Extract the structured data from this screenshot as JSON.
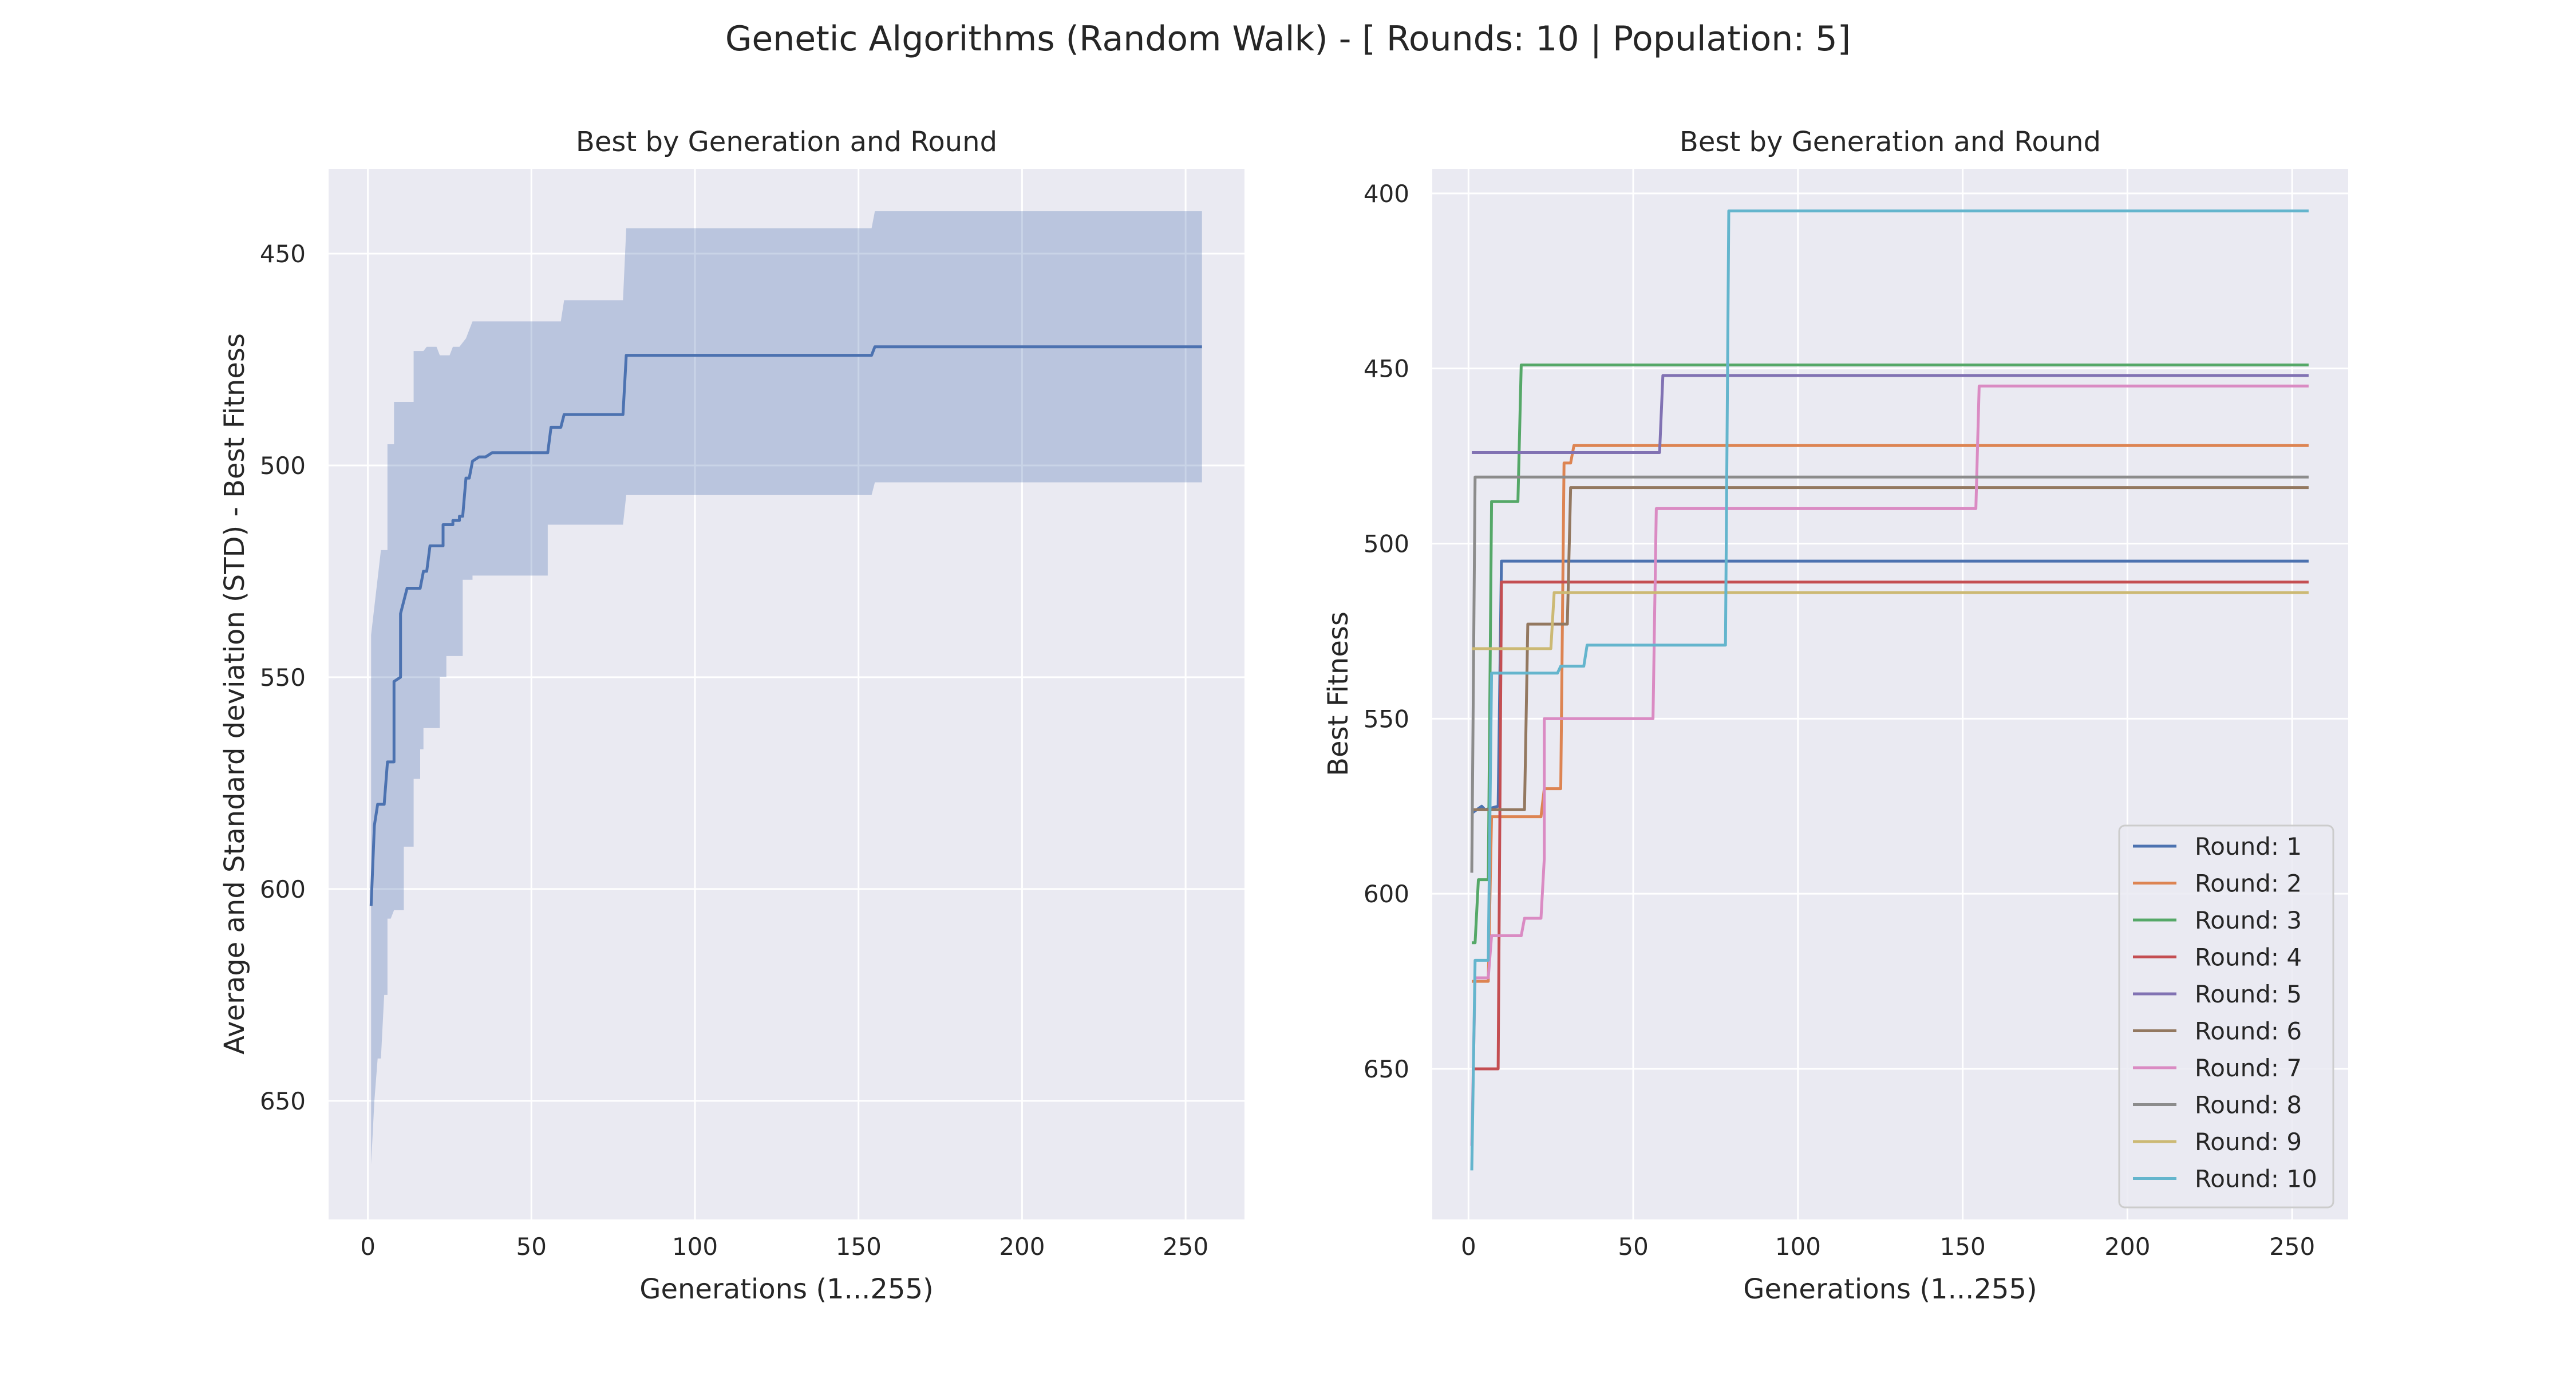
{
  "figure": {
    "suptitle": "Genetic Algorithms (Random Walk) - [ Rounds: 10 | Population: 5]"
  },
  "chart_data": [
    {
      "type": "line",
      "title": "Best by Generation and Round",
      "xlabel": "Generations (1...255)",
      "ylabel": "Average and Standard deviation (STD) - Best Fitness",
      "xlim": [
        -12,
        268
      ],
      "ylim": [
        678,
        430
      ],
      "y_inverted": true,
      "grid": true,
      "xticks": [
        0,
        50,
        100,
        150,
        200,
        250
      ],
      "yticks": [
        450,
        500,
        550,
        600,
        650
      ],
      "series": [
        {
          "kind": "mean",
          "color": "#4c72b0",
          "points": [
            [
              1,
              604
            ],
            [
              2,
              585
            ],
            [
              3,
              580
            ],
            [
              5,
              580
            ],
            [
              6,
              570
            ],
            [
              8,
              570
            ],
            [
              8,
              551
            ],
            [
              10,
              550
            ],
            [
              10,
              535
            ],
            [
              12,
              529
            ],
            [
              16,
              529
            ],
            [
              17,
              525
            ],
            [
              18,
              525
            ],
            [
              19,
              519
            ],
            [
              23,
              519
            ],
            [
              23,
              514
            ],
            [
              26,
              514
            ],
            [
              26,
              513
            ],
            [
              28,
              513
            ],
            [
              28,
              512
            ],
            [
              29,
              512
            ],
            [
              30,
              503
            ],
            [
              31,
              503
            ],
            [
              32,
              499
            ],
            [
              34,
              498
            ],
            [
              36,
              498
            ],
            [
              38,
              497
            ],
            [
              55,
              497
            ],
            [
              56,
              491
            ],
            [
              59,
              491
            ],
            [
              60,
              488
            ],
            [
              78,
              488
            ],
            [
              79,
              474
            ],
            [
              154,
              474
            ],
            [
              155,
              472
            ],
            [
              255,
              472
            ]
          ]
        },
        {
          "kind": "std-band",
          "color": "#4c72b0",
          "upper": [
            [
              1,
              540
            ],
            [
              4,
              520
            ],
            [
              6,
              520
            ],
            [
              6,
              495
            ],
            [
              8,
              495
            ],
            [
              8,
              485
            ],
            [
              14,
              485
            ],
            [
              14,
              473
            ],
            [
              17,
              473
            ],
            [
              18,
              472
            ],
            [
              21,
              472
            ],
            [
              22,
              474
            ],
            [
              25,
              474
            ],
            [
              26,
              472
            ],
            [
              28,
              472
            ],
            [
              30,
              470
            ],
            [
              32,
              466
            ],
            [
              36,
              466
            ],
            [
              37,
              466
            ],
            [
              59,
              466
            ],
            [
              60,
              461
            ],
            [
              78,
              461
            ],
            [
              79,
              444
            ],
            [
              154,
              444
            ],
            [
              155,
              440
            ],
            [
              255,
              440
            ]
          ],
          "lower": [
            [
              1,
              665
            ],
            [
              2,
              650
            ],
            [
              3,
              640
            ],
            [
              4,
              640
            ],
            [
              5,
              625
            ],
            [
              6,
              625
            ],
            [
              6,
              607
            ],
            [
              7,
              607
            ],
            [
              8,
              605
            ],
            [
              11,
              605
            ],
            [
              11,
              590
            ],
            [
              12,
              590
            ],
            [
              14,
              590
            ],
            [
              14,
              574
            ],
            [
              16,
              574
            ],
            [
              16,
              567
            ],
            [
              17,
              567
            ],
            [
              17,
              562
            ],
            [
              19,
              562
            ],
            [
              21,
              562
            ],
            [
              22,
              562
            ],
            [
              22,
              550
            ],
            [
              24,
              550
            ],
            [
              24,
              545
            ],
            [
              29,
              545
            ],
            [
              29,
              527
            ],
            [
              32,
              527
            ],
            [
              32,
              526
            ],
            [
              38,
              526
            ],
            [
              55,
              526
            ],
            [
              55,
              514
            ],
            [
              78,
              514
            ],
            [
              79,
              507
            ],
            [
              154,
              507
            ],
            [
              155,
              504
            ],
            [
              255,
              504
            ]
          ]
        }
      ]
    },
    {
      "type": "line",
      "title": "Best by Generation and Round",
      "xlabel": "Generations (1...255)",
      "ylabel": "Best Fitness",
      "xlim": [
        -11,
        267
      ],
      "ylim": [
        693,
        393
      ],
      "y_inverted": true,
      "grid": true,
      "xticks": [
        0,
        50,
        100,
        150,
        200,
        250
      ],
      "yticks": [
        400,
        450,
        500,
        550,
        600,
        650
      ],
      "legend": {
        "position": "lower right"
      },
      "series": [
        {
          "name": "Round: 1",
          "color": "#4c72b0",
          "points": [
            [
              1,
              577
            ],
            [
              4,
              575
            ],
            [
              5,
              576
            ],
            [
              9,
              575
            ],
            [
              10,
              505
            ],
            [
              255,
              505
            ]
          ]
        },
        {
          "name": "Round: 2",
          "color": "#dd8452",
          "points": [
            [
              1,
              625
            ],
            [
              6,
              625
            ],
            [
              7,
              578
            ],
            [
              22,
              578
            ],
            [
              23,
              570
            ],
            [
              28,
              570
            ],
            [
              29,
              477
            ],
            [
              31,
              477
            ],
            [
              32,
              472
            ],
            [
              255,
              472
            ]
          ]
        },
        {
          "name": "Round: 3",
          "color": "#55a868",
          "points": [
            [
              1,
              614
            ],
            [
              2,
              614
            ],
            [
              3,
              596
            ],
            [
              6,
              596
            ],
            [
              7,
              488
            ],
            [
              15,
              488
            ],
            [
              16,
              449
            ],
            [
              255,
              449
            ]
          ]
        },
        {
          "name": "Round: 4",
          "color": "#c44e52",
          "points": [
            [
              1,
              650
            ],
            [
              9,
              650
            ],
            [
              10,
              511
            ],
            [
              255,
              511
            ]
          ]
        },
        {
          "name": "Round: 5",
          "color": "#8172b3",
          "points": [
            [
              1,
              474
            ],
            [
              58,
              474
            ],
            [
              59,
              452
            ],
            [
              255,
              452
            ]
          ]
        },
        {
          "name": "Round: 6",
          "color": "#937860",
          "points": [
            [
              1,
              576
            ],
            [
              17,
              576
            ],
            [
              18,
              523
            ],
            [
              30,
              523
            ],
            [
              31,
              484
            ],
            [
              255,
              484
            ]
          ]
        },
        {
          "name": "Round: 7",
          "color": "#da8bc3",
          "points": [
            [
              1,
              672
            ],
            [
              2,
              624
            ],
            [
              6,
              624
            ],
            [
              7,
              612
            ],
            [
              16,
              612
            ],
            [
              17,
              607
            ],
            [
              22,
              607
            ],
            [
              23,
              590
            ],
            [
              23,
              550
            ],
            [
              56,
              550
            ],
            [
              57,
              490
            ],
            [
              154,
              490
            ],
            [
              155,
              455
            ],
            [
              255,
              455
            ]
          ]
        },
        {
          "name": "Round: 8",
          "color": "#8c8c8c",
          "points": [
            [
              1,
              594
            ],
            [
              2,
              481
            ],
            [
              255,
              481
            ]
          ]
        },
        {
          "name": "Round: 9",
          "color": "#ccb974",
          "points": [
            [
              1,
              530
            ],
            [
              25,
              530
            ],
            [
              26,
              514
            ],
            [
              255,
              514
            ]
          ]
        },
        {
          "name": "Round: 10",
          "color": "#64b5cd",
          "points": [
            [
              1,
              679
            ],
            [
              2,
              619
            ],
            [
              6,
              619
            ],
            [
              7,
              537
            ],
            [
              27,
              537
            ],
            [
              28,
              535
            ],
            [
              35,
              535
            ],
            [
              36,
              529
            ],
            [
              78,
              529
            ],
            [
              79,
              405
            ],
            [
              255,
              405
            ]
          ]
        }
      ]
    }
  ]
}
